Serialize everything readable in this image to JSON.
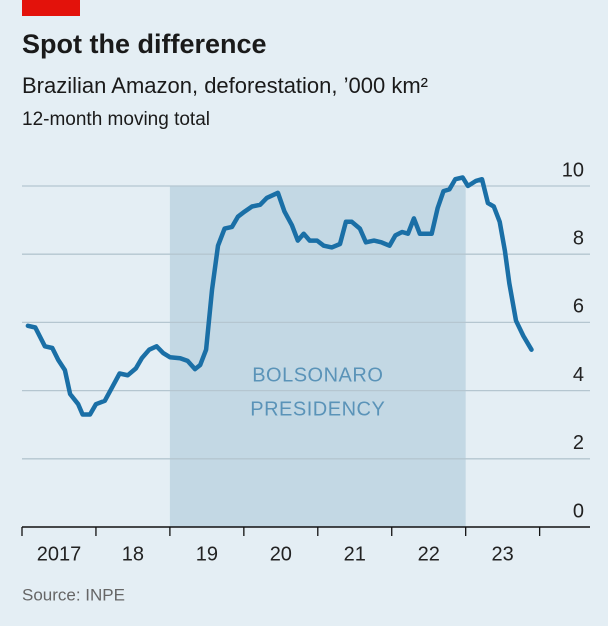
{
  "chart_data": {
    "type": "line",
    "title": "Spot the difference",
    "subtitle": "Brazilian Amazon, deforestation, ’000 km²",
    "y_label": "12-month moving total",
    "source": "Source: INPE",
    "annotation": {
      "text_lines": [
        "BOLSONARO",
        "PRESIDENCY"
      ],
      "span": [
        2019,
        2023
      ],
      "color": "#c3d8e4"
    },
    "x": [
      2017.08,
      2017.18,
      2017.31,
      2017.41,
      2017.49,
      2017.58,
      2017.65,
      2017.76,
      2017.82,
      2017.92,
      2018.0,
      2018.12,
      2018.22,
      2018.32,
      2018.43,
      2018.54,
      2018.62,
      2018.72,
      2018.82,
      2018.91,
      2019.0,
      2019.14,
      2019.24,
      2019.34,
      2019.41,
      2019.49,
      2019.57,
      2019.65,
      2019.74,
      2019.84,
      2019.92,
      2020.01,
      2020.11,
      2020.22,
      2020.31,
      2020.46,
      2020.55,
      2020.65,
      2020.73,
      2020.81,
      2020.89,
      2020.99,
      2021.08,
      2021.19,
      2021.3,
      2021.38,
      2021.46,
      2021.57,
      2021.65,
      2021.76,
      2021.86,
      2021.97,
      2022.05,
      2022.14,
      2022.22,
      2022.3,
      2022.38,
      2022.45,
      2022.54,
      2022.62,
      2022.7,
      2022.78,
      2022.86,
      2022.96,
      2023.03,
      2023.14,
      2023.22,
      2023.3,
      2023.38,
      2023.46,
      2023.53,
      2023.59,
      2023.68,
      2023.78,
      2023.89
    ],
    "series": [
      {
        "name": "Deforestation",
        "color": "#1a6fa6",
        "values": [
          5.9,
          5.85,
          5.3,
          5.25,
          4.9,
          4.6,
          3.9,
          3.6,
          3.3,
          3.3,
          3.6,
          3.7,
          4.1,
          4.5,
          4.45,
          4.65,
          4.95,
          5.2,
          5.3,
          5.1,
          4.98,
          4.95,
          4.87,
          4.63,
          4.75,
          5.2,
          6.95,
          8.25,
          8.75,
          8.8,
          9.1,
          9.25,
          9.4,
          9.45,
          9.65,
          9.8,
          9.25,
          8.85,
          8.4,
          8.6,
          8.4,
          8.4,
          8.25,
          8.2,
          8.3,
          8.95,
          8.95,
          8.75,
          8.35,
          8.4,
          8.35,
          8.25,
          8.55,
          8.65,
          8.6,
          9.05,
          8.6,
          8.6,
          8.6,
          9.35,
          9.85,
          9.9,
          10.2,
          10.25,
          10.0,
          10.15,
          10.2,
          9.5,
          9.4,
          8.95,
          8.1,
          7.15,
          6.05,
          5.6,
          5.2
        ]
      }
    ],
    "xlim": [
      2017,
      2024.6
    ],
    "ylim": [
      0,
      10
    ],
    "yticks": [
      0,
      2,
      4,
      6,
      8,
      10
    ],
    "xticks": [
      {
        "value": 2017,
        "label": "2017"
      },
      {
        "value": 2018,
        "label": "18"
      },
      {
        "value": 2019,
        "label": "19"
      },
      {
        "value": 2020,
        "label": "20"
      },
      {
        "value": 2021,
        "label": "21"
      },
      {
        "value": 2022,
        "label": "22"
      },
      {
        "value": 2023,
        "label": "23"
      },
      2024
    ],
    "grid": true
  }
}
